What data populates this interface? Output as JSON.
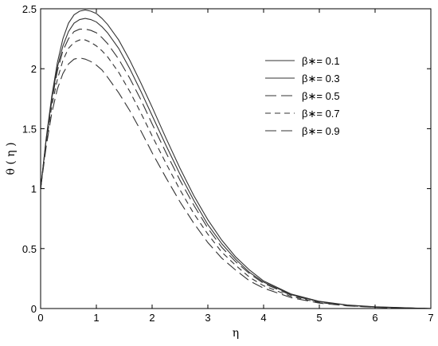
{
  "chart_data": {
    "type": "line",
    "title": "",
    "xlabel": "η",
    "ylabel": "θ ( η )",
    "xlim": [
      0,
      7
    ],
    "ylim": [
      0,
      2.5
    ],
    "xticks": [
      0,
      1,
      2,
      3,
      4,
      5,
      6,
      7
    ],
    "yticks": [
      0,
      0.5,
      1,
      1.5,
      2,
      2.5
    ],
    "xtick_labels": [
      "0",
      "1",
      "2",
      "3",
      "4",
      "5",
      "6",
      "7"
    ],
    "ytick_labels": [
      "0",
      "0.5",
      "1",
      "1.5",
      "2",
      "2.5"
    ],
    "grid": false,
    "legend_position": "top-right",
    "series": [
      {
        "name": "β∗= 0.1",
        "dash": "solid",
        "x": [
          0,
          0.1,
          0.2,
          0.3,
          0.4,
          0.5,
          0.6,
          0.7,
          0.8,
          0.9,
          1.0,
          1.1,
          1.2,
          1.4,
          1.6,
          1.8,
          2.0,
          2.25,
          2.5,
          2.75,
          3.0,
          3.25,
          3.5,
          3.75,
          4.0,
          4.5,
          5.0,
          5.5,
          6.0,
          6.5,
          7.0
        ],
        "y": [
          1.0,
          1.42,
          1.77,
          2.05,
          2.25,
          2.38,
          2.45,
          2.48,
          2.49,
          2.48,
          2.46,
          2.42,
          2.37,
          2.24,
          2.07,
          1.88,
          1.68,
          1.42,
          1.17,
          0.94,
          0.74,
          0.57,
          0.43,
          0.32,
          0.23,
          0.12,
          0.06,
          0.03,
          0.015,
          0.007,
          0.0
        ]
      },
      {
        "name": "β∗= 0.3",
        "dash": "solid",
        "x": [
          0,
          0.1,
          0.2,
          0.3,
          0.4,
          0.5,
          0.6,
          0.7,
          0.8,
          0.9,
          1.0,
          1.1,
          1.2,
          1.4,
          1.6,
          1.8,
          2.0,
          2.25,
          2.5,
          2.75,
          3.0,
          3.25,
          3.5,
          3.75,
          4.0,
          4.5,
          5.0,
          5.5,
          6.0,
          6.5,
          7.0
        ],
        "y": [
          1.0,
          1.41,
          1.75,
          2.01,
          2.19,
          2.31,
          2.38,
          2.41,
          2.42,
          2.41,
          2.39,
          2.35,
          2.3,
          2.17,
          2.0,
          1.81,
          1.61,
          1.36,
          1.12,
          0.9,
          0.7,
          0.54,
          0.41,
          0.3,
          0.22,
          0.115,
          0.058,
          0.028,
          0.013,
          0.006,
          0.0
        ]
      },
      {
        "name": "β∗= 0.5",
        "dash": "longdash",
        "x": [
          0,
          0.1,
          0.2,
          0.3,
          0.4,
          0.5,
          0.6,
          0.7,
          0.8,
          0.9,
          1.0,
          1.1,
          1.2,
          1.4,
          1.6,
          1.8,
          2.0,
          2.25,
          2.5,
          2.75,
          3.0,
          3.25,
          3.5,
          3.75,
          4.0,
          4.5,
          5.0,
          5.5,
          6.0,
          6.5,
          7.0
        ],
        "y": [
          1.0,
          1.4,
          1.73,
          1.98,
          2.15,
          2.25,
          2.31,
          2.33,
          2.33,
          2.32,
          2.3,
          2.26,
          2.21,
          2.08,
          1.92,
          1.74,
          1.54,
          1.3,
          1.07,
          0.86,
          0.67,
          0.51,
          0.39,
          0.29,
          0.21,
          0.11,
          0.055,
          0.027,
          0.012,
          0.005,
          0.0
        ]
      },
      {
        "name": "β∗= 0.7",
        "dash": "dash",
        "x": [
          0,
          0.1,
          0.2,
          0.3,
          0.4,
          0.5,
          0.6,
          0.7,
          0.8,
          0.9,
          1.0,
          1.1,
          1.2,
          1.4,
          1.6,
          1.8,
          2.0,
          2.25,
          2.5,
          2.75,
          3.0,
          3.25,
          3.5,
          3.75,
          4.0,
          4.5,
          5.0,
          5.5,
          6.0,
          6.5,
          7.0
        ],
        "y": [
          1.0,
          1.38,
          1.69,
          1.91,
          2.07,
          2.17,
          2.22,
          2.24,
          2.24,
          2.22,
          2.19,
          2.15,
          2.1,
          1.97,
          1.81,
          1.63,
          1.44,
          1.21,
          0.99,
          0.79,
          0.62,
          0.47,
          0.36,
          0.26,
          0.19,
          0.1,
          0.05,
          0.024,
          0.011,
          0.005,
          0.0
        ]
      },
      {
        "name": "β∗= 0.9",
        "dash": "longdash",
        "x": [
          0,
          0.1,
          0.2,
          0.3,
          0.4,
          0.5,
          0.6,
          0.7,
          0.8,
          0.9,
          1.0,
          1.1,
          1.2,
          1.4,
          1.6,
          1.8,
          2.0,
          2.25,
          2.5,
          2.75,
          3.0,
          3.25,
          3.5,
          3.75,
          4.0,
          4.5,
          5.0,
          5.5,
          6.0,
          6.5,
          7.0
        ],
        "y": [
          1.0,
          1.35,
          1.63,
          1.83,
          1.96,
          2.04,
          2.08,
          2.09,
          2.08,
          2.06,
          2.03,
          1.99,
          1.93,
          1.8,
          1.65,
          1.48,
          1.3,
          1.09,
          0.89,
          0.71,
          0.55,
          0.42,
          0.32,
          0.23,
          0.17,
          0.09,
          0.045,
          0.022,
          0.01,
          0.004,
          0.0
        ]
      }
    ]
  }
}
